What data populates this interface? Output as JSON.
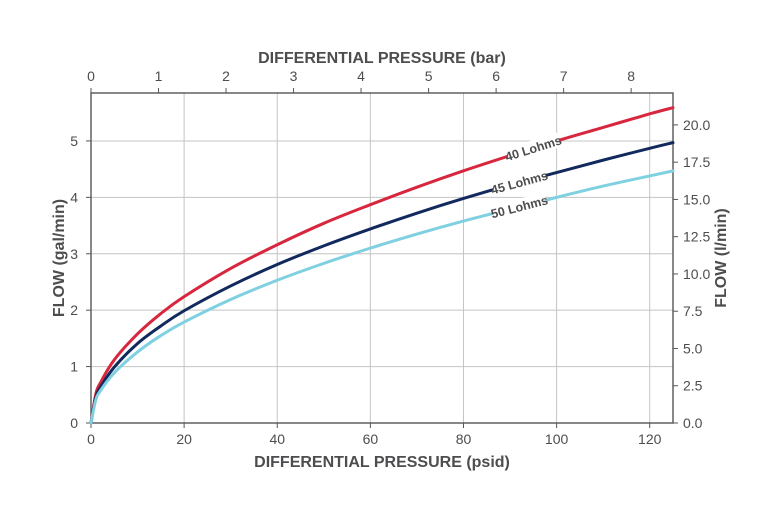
{
  "chart_data": {
    "type": "line",
    "title": "",
    "xlabel": "DIFFERENTIAL PRESSURE (psid)",
    "ylabel": "FLOW (gal/min)",
    "x2label": "DIFFERENTIAL PRESSURE (bar)",
    "y2label": "FLOW (l/min)",
    "xlim": [
      0,
      125
    ],
    "ylim": [
      0,
      5.85
    ],
    "x2lim": [
      0,
      8.62
    ],
    "y2lim": [
      0,
      22.14
    ],
    "x_ticks": [
      "0",
      "20",
      "40",
      "60",
      "80",
      "100",
      "120"
    ],
    "y_ticks": [
      "0",
      "1",
      "2",
      "3",
      "4",
      "5"
    ],
    "x2_ticks": [
      "0",
      "1",
      "2",
      "3",
      "4",
      "5",
      "6",
      "7",
      "8"
    ],
    "y2_ticks": [
      "0.0",
      "2.5",
      "5.0",
      "7.5",
      "10.0",
      "12.5",
      "15.0",
      "17.5",
      "20.0"
    ],
    "grid": true,
    "x": [
      0,
      1,
      2,
      5,
      10,
      15,
      20,
      30,
      40,
      50,
      60,
      70,
      80,
      90,
      100,
      110,
      120,
      125
    ],
    "series": [
      {
        "name": "40 Lohms",
        "color": "#d7263d",
        "values": [
          0,
          0.5,
          0.71,
          1.12,
          1.58,
          1.94,
          2.24,
          2.74,
          3.16,
          3.54,
          3.87,
          4.18,
          4.47,
          4.74,
          5.0,
          5.24,
          5.48,
          5.59
        ]
      },
      {
        "name": "45 Lohms",
        "color": "#12295d",
        "values": [
          0,
          0.44,
          0.63,
          0.99,
          1.41,
          1.72,
          1.99,
          2.43,
          2.81,
          3.14,
          3.44,
          3.72,
          3.98,
          4.22,
          4.44,
          4.66,
          4.87,
          4.97
        ]
      },
      {
        "name": "50 Lohms",
        "color": "#7fd0e0",
        "values": [
          0,
          0.4,
          0.57,
          0.89,
          1.26,
          1.55,
          1.79,
          2.19,
          2.53,
          2.83,
          3.1,
          3.35,
          3.58,
          3.79,
          4.0,
          4.2,
          4.38,
          4.47
        ]
      }
    ]
  }
}
